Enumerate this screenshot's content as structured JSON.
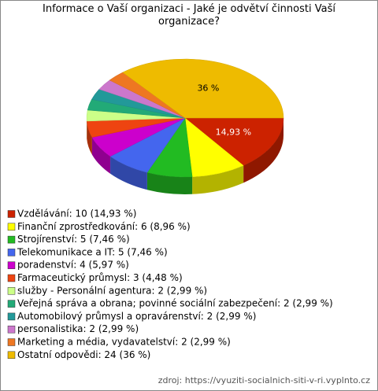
{
  "chart_data": {
    "type": "pie",
    "title": "Informace o Vaší organizaci - Jaké je odvětví činnosti Vaší organizace?",
    "categories": [
      "Vzdělávání: 10 (14,93 %)",
      "Finanční zprostředkování: 6 (8,96 %)",
      "Strojírenství: 5 (7,46 %)",
      "Telekomunikace a IT: 5 (7,46 %)",
      "poradenství: 4 (5,97 %)",
      "Farmaceutický průmysl: 3 (4,48 %)",
      "služby - Personální agentura: 2 (2,99 %)",
      "Veřejná správa a obrana; povinné sociální zabezpečení: 2 (2,99 %)",
      "Automobilový průmysl a opravárenství: 2 (2,99 %)",
      "personalistika: 2 (2,99 %)",
      "Marketing a média, vydavatelství: 2 (2,99 %)",
      "Ostatní odpovědi: 24 (36 %)"
    ],
    "values": [
      14.93,
      8.96,
      7.46,
      7.46,
      5.97,
      4.48,
      2.99,
      2.99,
      2.99,
      2.99,
      2.99,
      36
    ],
    "value_labels": [
      "14,93 %",
      null,
      null,
      null,
      null,
      null,
      null,
      null,
      null,
      null,
      null,
      "36 %"
    ],
    "colors": [
      "#cc2200",
      "#ffff00",
      "#22bb22",
      "#4466ee",
      "#cc00cc",
      "#ee4411",
      "#ccff88",
      "#22aa77",
      "#229999",
      "#cc77cc",
      "#ee7722",
      "#eebb00"
    ],
    "source": "zdroj: https://vyuziti-socialnich-siti-v-ri.vyplnto.cz"
  }
}
